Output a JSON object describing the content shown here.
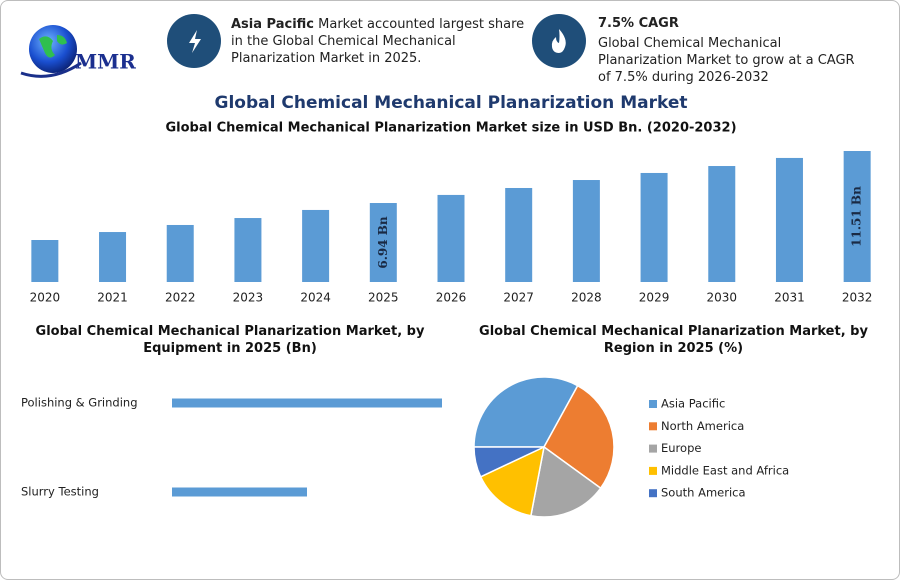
{
  "header": {
    "logo": "MMR",
    "box1": {
      "bold": "Asia Pacific",
      "text": "Market accounted largest share in the Global Chemical Mechanical Planarization Market in 2025."
    },
    "box2": {
      "title": "7.5% CAGR",
      "text": "Global Chemical Mechanical Planarization Market to grow at a CAGR of 7.5% during 2026-2032"
    },
    "title": "Global Chemical Mechanical Planarization Market"
  },
  "chart_data": [
    {
      "type": "bar",
      "title": "Global Chemical Mechanical Planarization Market size in USD Bn. (2020-2032)",
      "categories": [
        "2020",
        "2021",
        "2022",
        "2023",
        "2024",
        "2025",
        "2026",
        "2027",
        "2028",
        "2029",
        "2030",
        "2031",
        "2032"
      ],
      "values": [
        3.69,
        4.39,
        5.01,
        5.62,
        6.33,
        6.94,
        7.65,
        8.26,
        8.96,
        9.58,
        10.19,
        10.9,
        11.51
      ],
      "value_labels": [
        null,
        null,
        null,
        null,
        null,
        "6.94 Bn",
        null,
        null,
        null,
        null,
        null,
        null,
        "11.51 Bn"
      ],
      "color": "#5b9bd5"
    },
    {
      "type": "barh",
      "title": "Global Chemical Mechanical Planarization Market, by Equipment in 2025 (Bn)",
      "categories": [
        "Polishing & Grinding",
        "Slurry Testing"
      ],
      "values": [
        4.6,
        2.3
      ],
      "color": "#5b9bd5"
    },
    {
      "type": "pie",
      "title": "Global Chemical Mechanical Planarization Market, by Region in 2025 (%)",
      "categories": [
        "Asia Pacific",
        "North America",
        "Europe",
        "Middle East and Africa",
        "South America"
      ],
      "values": [
        33,
        27,
        18,
        15,
        7
      ],
      "colors": [
        "#5b9bd5",
        "#ed7d31",
        "#a5a5a5",
        "#ffc000",
        "#4472c4"
      ],
      "legend": "right"
    }
  ]
}
